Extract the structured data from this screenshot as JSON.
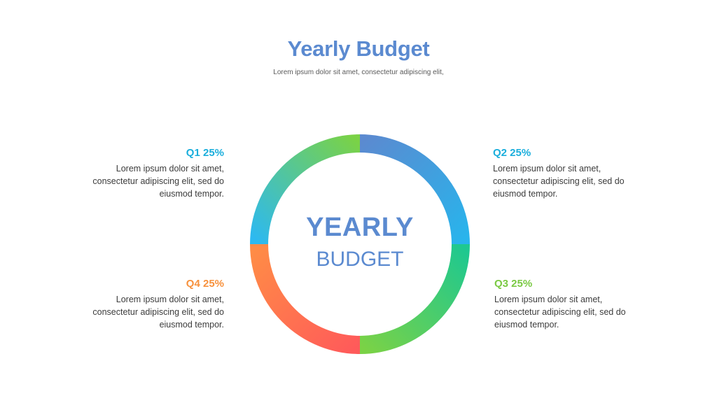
{
  "header": {
    "title": "Yearly Budget",
    "subtitle": "Lorem ipsum dolor sit amet, consectetur adipiscing elit,"
  },
  "center": {
    "line1": "YEARLY",
    "line2": "BUDGET"
  },
  "quarters": {
    "q1": {
      "label": "Q1 25%",
      "color": "#1aaedc",
      "text": [
        "Lorem ipsum dolor sit amet,",
        "consectetur adipiscing elit, sed do",
        "eiusmod tempor."
      ]
    },
    "q2": {
      "label": "Q2 25%",
      "color": "#1aaedc",
      "text": [
        "Lorem ipsum dolor sit amet,",
        "consectetur adipiscing elit, sed do",
        "eiusmod tempor."
      ]
    },
    "q3": {
      "label": "Q3 25%",
      "color": "#7ac943",
      "text": [
        "Lorem ipsum dolor sit amet,",
        "consectetur adipiscing elit, sed do",
        "eiusmod tempor."
      ]
    },
    "q4": {
      "label": "Q4 25%",
      "color": "#f7913d",
      "text": [
        "Lorem ipsum dolor sit amet,",
        "consectetur adipiscing elit, sed do",
        "eiusmod tempor."
      ]
    }
  },
  "chart_data": {
    "type": "pie",
    "variant": "donut",
    "categories": [
      "Q1",
      "Q2",
      "Q3",
      "Q4"
    ],
    "values": [
      25,
      25,
      25,
      25
    ],
    "unit": "%",
    "segment_order_clockwise_from_top": [
      "Q2",
      "Q3",
      "Q4",
      "Q1"
    ],
    "segment_colors": {
      "Q2": [
        "#5b8ad0",
        "#28b4ec"
      ],
      "Q3": [
        "#1ec890",
        "#7ad246"
      ],
      "Q4": [
        "#ff5a5a",
        "#ff8c46"
      ],
      "Q1": [
        "#2db9f0",
        "#7ad246"
      ]
    }
  }
}
